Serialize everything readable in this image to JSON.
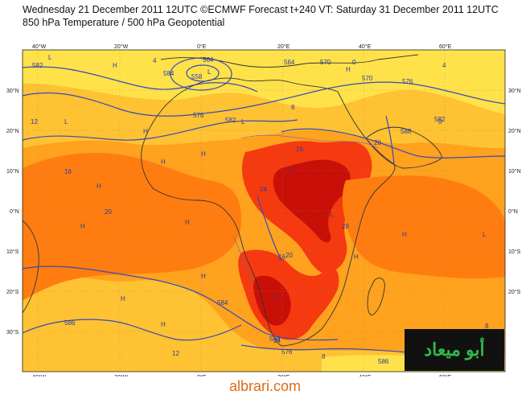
{
  "header": {
    "line1": "Wednesday 21 December 2011 12UTC ©ECMWF Forecast t+240 VT: Saturday 31 December 2011 12UTC",
    "line2": "850 hPa Temperature / 500 hPa Geopotential"
  },
  "axes": {
    "lon_labels": [
      "40°W",
      "20°W",
      "0°E",
      "20°E",
      "40°E",
      "60°E"
    ],
    "lat_labels": [
      "30°N",
      "20°N",
      "10°N",
      "0°N",
      "10°S",
      "20°S",
      "30°S"
    ]
  },
  "contour_labels": {
    "geopotential": [
      "582",
      "584",
      "588",
      "576",
      "570",
      "564",
      "558",
      "576",
      "582",
      "588",
      "584",
      "586",
      "588",
      "570",
      "576",
      "582",
      "586"
    ],
    "temperature": [
      "4",
      "0",
      "4",
      "8",
      "12",
      "16",
      "20",
      "24",
      "28",
      "16",
      "20",
      "12",
      "8",
      "0",
      "8",
      "12",
      "16",
      "20",
      "24",
      "28",
      "16"
    ]
  },
  "pressure_marks": [
    "L",
    "H",
    "L",
    "H",
    "L",
    "H",
    "L",
    "H",
    "H",
    "H",
    "L",
    "H",
    "H",
    "L",
    "H",
    "H",
    "L",
    "H",
    "H",
    "H",
    "L"
  ],
  "colors": {
    "yellow": "#ffe24a",
    "light_orange": "#ffc233",
    "orange": "#ffa21e",
    "dark_orange": "#ff7d10",
    "red": "#f53a0f",
    "dark_red": "#c91008",
    "coast": "#333333",
    "geopotential_line": "#3a4bb5"
  },
  "logo_text": "أبو ميعاد",
  "footer_text": "albrari.com"
}
